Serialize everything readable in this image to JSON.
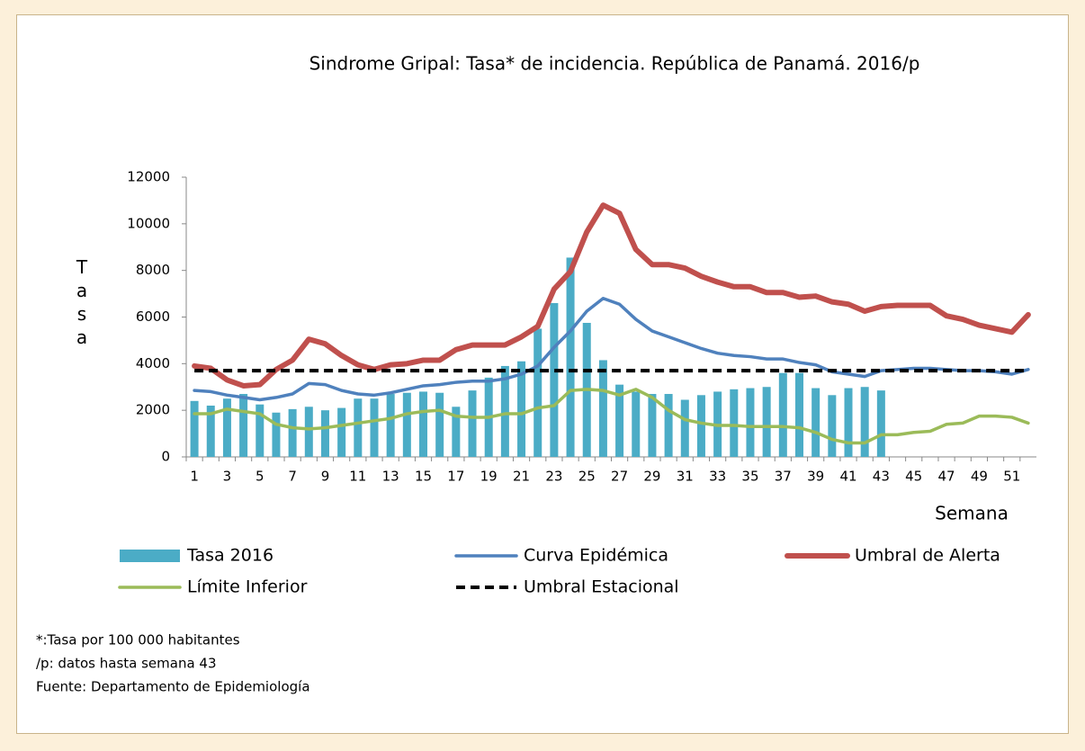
{
  "chart_data": {
    "type": "bar",
    "title": "Sindrome Gripal: Tasa* de incidencia. República de Panamá. 2016/p",
    "y_label": "Tasa",
    "x_label": "Semana",
    "categories": [
      1,
      null,
      3,
      null,
      5,
      null,
      7,
      null,
      9,
      null,
      11,
      null,
      13,
      null,
      15,
      null,
      17,
      null,
      19,
      null,
      21,
      null,
      23,
      null,
      25,
      null,
      27,
      null,
      29,
      null,
      31,
      null,
      33,
      null,
      35,
      null,
      37,
      null,
      39,
      null,
      41,
      null,
      43,
      null,
      45,
      null,
      47,
      null,
      49,
      null,
      51,
      null
    ],
    "ylim": [
      0,
      12000
    ],
    "yticks": [
      0,
      2000,
      4000,
      6000,
      8000,
      10000,
      12000
    ],
    "grid": false,
    "series": [
      {
        "name": "Tasa 2016",
        "type": "bar",
        "color": "#4bacc6",
        "values": [
          2400,
          2200,
          2500,
          2700,
          2250,
          1900,
          2050,
          2150,
          2000,
          2100,
          2500,
          2500,
          2700,
          2750,
          2800,
          2750,
          2150,
          2850,
          3400,
          3900,
          4100,
          5500,
          6600,
          8550,
          5750,
          4150,
          3100,
          2800,
          2700,
          2700,
          2450,
          2650,
          2800,
          2900,
          2950,
          3000,
          3600,
          3600,
          2950,
          2650,
          2950,
          3000,
          2850,
          null,
          null,
          null,
          null,
          null,
          null,
          null,
          null,
          null
        ]
      },
      {
        "name": "Curva Epidémica",
        "type": "line",
        "color": "#4f81bd",
        "width": 3.5,
        "values": [
          2850,
          2800,
          2650,
          2550,
          2450,
          2550,
          2700,
          3150,
          3100,
          2850,
          2700,
          2650,
          2750,
          2900,
          3050,
          3100,
          3200,
          3250,
          3250,
          3350,
          3550,
          3900,
          4700,
          5400,
          6250,
          6800,
          6550,
          5900,
          5400,
          5150,
          4900,
          4650,
          4450,
          4350,
          4300,
          4200,
          4200,
          4050,
          3950,
          3650,
          3550,
          3450,
          3700,
          3750,
          3800,
          3800,
          3750,
          3700,
          3700,
          3650,
          3550,
          3750
        ]
      },
      {
        "name": "Umbral de Alerta",
        "type": "line",
        "color": "#c0504d",
        "width": 6,
        "values": [
          3900,
          3800,
          3300,
          3050,
          3100,
          3750,
          4150,
          5050,
          4850,
          4350,
          3950,
          3750,
          3950,
          4000,
          4150,
          4150,
          4600,
          4800,
          4800,
          4800,
          5150,
          5600,
          7200,
          7950,
          9650,
          10800,
          10450,
          8900,
          8250,
          8250,
          8100,
          7750,
          7500,
          7300,
          7300,
          7050,
          7050,
          6850,
          6900,
          6650,
          6550,
          6250,
          6450,
          6500,
          6500,
          6500,
          6050,
          5900,
          5650,
          5500,
          5350,
          6100
        ]
      },
      {
        "name": "Límite Inferior",
        "type": "line",
        "color": "#9bbb59",
        "width": 3.5,
        "values": [
          1850,
          1850,
          2050,
          1950,
          1850,
          1400,
          1250,
          1200,
          1250,
          1350,
          1450,
          1550,
          1650,
          1850,
          1950,
          2000,
          1750,
          1700,
          1700,
          1850,
          1850,
          2100,
          2200,
          2850,
          2900,
          2850,
          2650,
          2900,
          2550,
          2000,
          1600,
          1450,
          1350,
          1350,
          1300,
          1300,
          1300,
          1250,
          1050,
          750,
          600,
          600,
          950,
          950,
          1050,
          1100,
          1400,
          1450,
          1750,
          1750,
          1700,
          1450
        ]
      },
      {
        "name": "Umbral Estacional",
        "type": "line",
        "color": "#000000",
        "width": 4,
        "dashed": true,
        "values": [
          3700,
          3700,
          3700,
          3700,
          3700,
          3700,
          3700,
          3700,
          3700,
          3700,
          3700,
          3700,
          3700,
          3700,
          3700,
          3700,
          3700,
          3700,
          3700,
          3700,
          3700,
          3700,
          3700,
          3700,
          3700,
          3700,
          3700,
          3700,
          3700,
          3700,
          3700,
          3700,
          3700,
          3700,
          3700,
          3700,
          3700,
          3700,
          3700,
          3700,
          3700,
          3700,
          3700,
          3700,
          3700,
          3700,
          3700,
          3700,
          3700,
          3700,
          3700,
          3700
        ]
      }
    ],
    "notes": [
      "*:Tasa por 100 000 habitantes",
      "/p: datos hasta semana  43",
      "Fuente: Departamento de Epidemiología"
    ]
  }
}
